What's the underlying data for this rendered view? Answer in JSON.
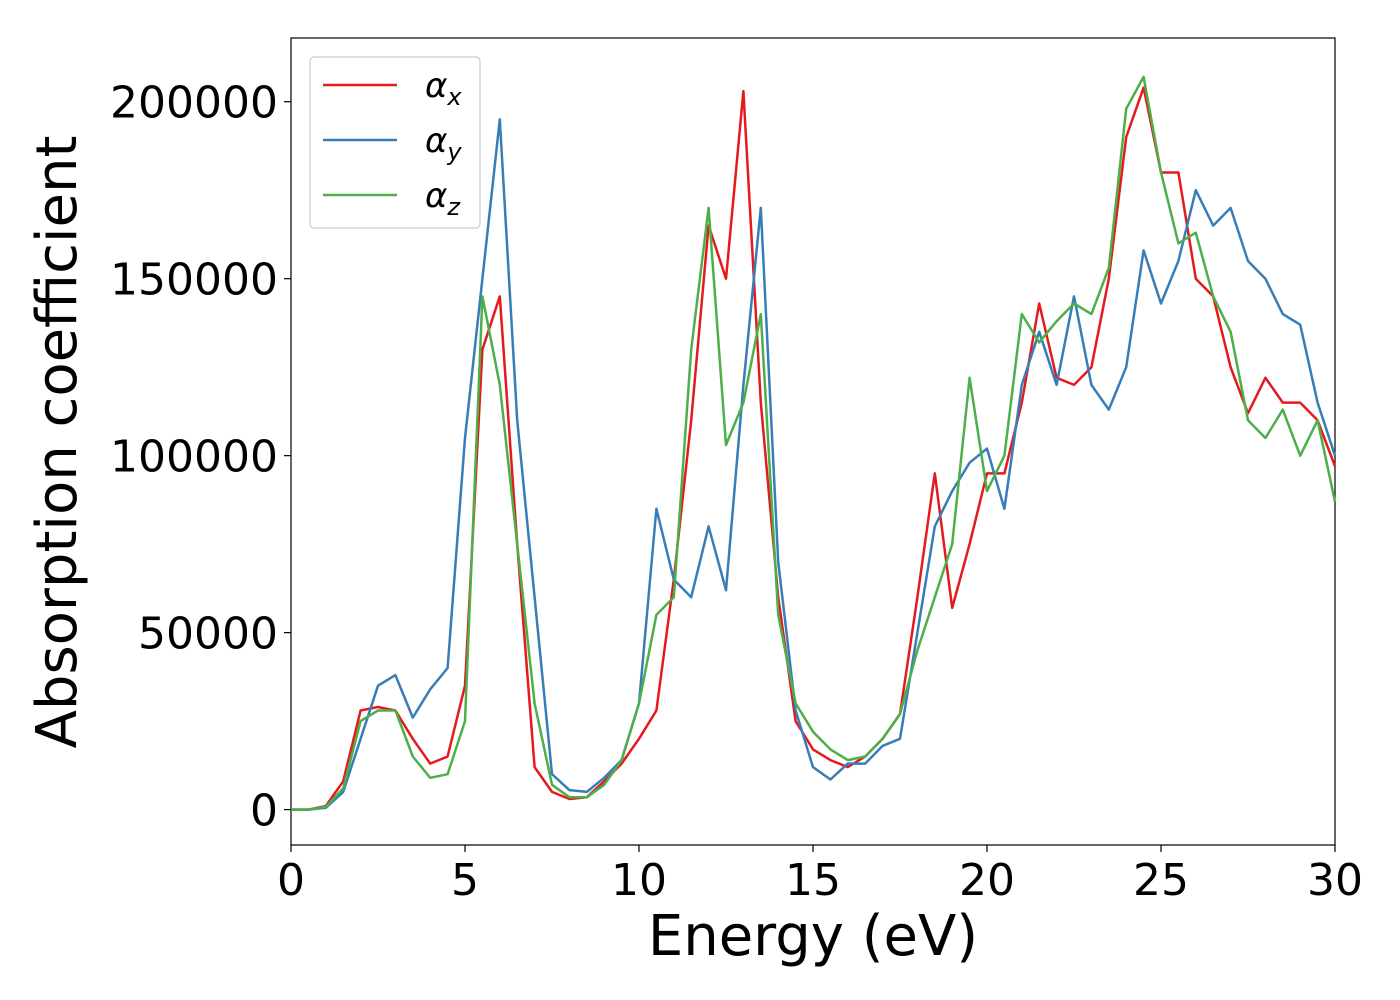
{
  "chart_data": {
    "type": "line",
    "xlabel": "Energy (eV)",
    "ylabel": "Absorption coefficient",
    "x": [
      0,
      0.5,
      1,
      1.5,
      2,
      2.5,
      3,
      3.5,
      4,
      4.5,
      5,
      5.5,
      6,
      6.5,
      7,
      7.5,
      8,
      8.5,
      9,
      9.5,
      10,
      10.5,
      11,
      11.5,
      12,
      12.5,
      13,
      13.5,
      14,
      14.5,
      15,
      15.5,
      16,
      16.5,
      17,
      17.5,
      18,
      18.5,
      19,
      19.5,
      20,
      20.5,
      21,
      21.5,
      22,
      22.5,
      23,
      23.5,
      24,
      24.5,
      25,
      25.5,
      26,
      26.5,
      27,
      27.5,
      28,
      28.5,
      29,
      29.5,
      30
    ],
    "series": [
      {
        "name": "αx",
        "color": "#e41a1c",
        "values": [
          0,
          0,
          1000,
          8000,
          28000,
          29000,
          28000,
          20000,
          13000,
          15000,
          35000,
          130000,
          145000,
          75000,
          12000,
          5000,
          3000,
          3500,
          8000,
          13000,
          20000,
          28000,
          65000,
          110000,
          165000,
          150000,
          203000,
          115000,
          60000,
          25000,
          17000,
          14000,
          12000,
          15000,
          20000,
          27000,
          60000,
          95000,
          57000,
          75000,
          95000,
          95000,
          115000,
          143000,
          122000,
          120000,
          125000,
          150000,
          190000,
          204000,
          180000,
          180000,
          150000,
          145000,
          125000,
          112000,
          122000,
          115000,
          115000,
          110000,
          97000
        ]
      },
      {
        "name": "αy",
        "color": "#377eb8",
        "values": [
          0,
          0,
          500,
          5000,
          20000,
          35000,
          38000,
          26000,
          34000,
          40000,
          105000,
          150000,
          195000,
          110000,
          60000,
          10000,
          5500,
          5000,
          9000,
          14000,
          30000,
          85000,
          65000,
          60000,
          80000,
          62000,
          120000,
          170000,
          70000,
          28000,
          12000,
          8500,
          13000,
          13000,
          18000,
          20000,
          50000,
          80000,
          90000,
          98000,
          102000,
          85000,
          120000,
          135000,
          120000,
          145000,
          120000,
          113000,
          125000,
          158000,
          143000,
          155000,
          175000,
          165000,
          170000,
          155000,
          150000,
          140000,
          137000,
          115000,
          100000
        ]
      },
      {
        "name": "αz",
        "color": "#4daf4a",
        "values": [
          0,
          0,
          800,
          6000,
          25000,
          28000,
          28000,
          15000,
          9000,
          10000,
          25000,
          145000,
          120000,
          75000,
          30000,
          7000,
          3500,
          3500,
          7000,
          14000,
          30000,
          55000,
          60000,
          130000,
          170000,
          103000,
          115000,
          140000,
          55000,
          30000,
          22000,
          17000,
          14000,
          15000,
          20000,
          27000,
          45000,
          60000,
          75000,
          122000,
          90000,
          100000,
          140000,
          132000,
          138000,
          143000,
          140000,
          153000,
          198000,
          207000,
          180000,
          160000,
          163000,
          145000,
          135000,
          110000,
          105000,
          113000,
          100000,
          110000,
          87000
        ]
      }
    ],
    "xlim": [
      0,
      30
    ],
    "xticks": [
      0,
      5,
      10,
      15,
      20,
      25,
      30
    ],
    "ylim": [
      -10000,
      218000
    ],
    "yticks": [
      0,
      50000,
      100000,
      150000,
      200000
    ],
    "grid": false,
    "legend": "upper left"
  }
}
